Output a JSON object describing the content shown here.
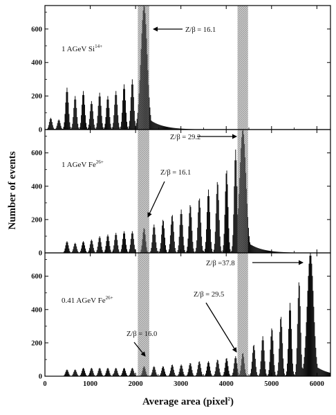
{
  "chart_data": {
    "type": "bar",
    "xlabel": "Average area (pixel",
    "xlabel_sup": "2",
    "xlabel_close": ")",
    "ylabel": "Number of events",
    "xlim": [
      0,
      6300
    ],
    "ylim": [
      0,
      740
    ],
    "xticks": [
      "0",
      "1000",
      "2000",
      "3000",
      "4000",
      "5000",
      "6000"
    ],
    "xtick_values": [
      0,
      1000,
      2000,
      3000,
      4000,
      5000,
      6000
    ],
    "yticks": [
      "0",
      "200",
      "400",
      "600"
    ],
    "ytick_values": [
      0,
      200,
      400,
      600
    ],
    "bands": [
      {
        "x0": 2050,
        "x1": 2300
      },
      {
        "x0": 4250,
        "x1": 4480
      }
    ],
    "panels": [
      {
        "label": "1 AGeV Si",
        "label_sup": "14+",
        "series": {
          "type": "histogram",
          "peak_positions": [
            120,
            300,
            480,
            660,
            840,
            1020,
            1200,
            1380,
            1560,
            1740,
            1920,
            2180
          ],
          "peak_heights": [
            70,
            60,
            250,
            200,
            230,
            170,
            220,
            200,
            230,
            270,
            300,
            740
          ]
        },
        "annotations": [
          {
            "text": "Z/β = 16.1",
            "x": 2180,
            "y": 600
          }
        ]
      },
      {
        "label": "1 AGeV Fe",
        "label_sup": "26+",
        "series": {
          "type": "histogram",
          "peak_positions": [
            480,
            660,
            840,
            1020,
            1200,
            1380,
            1560,
            1740,
            1920,
            2180,
            2400,
            2600,
            2800,
            3000,
            3200,
            3400,
            3600,
            3800,
            4000,
            4200,
            4360
          ],
          "peak_heights": [
            70,
            60,
            70,
            80,
            100,
            110,
            120,
            130,
            130,
            150,
            170,
            200,
            230,
            260,
            290,
            330,
            380,
            430,
            500,
            620,
            740
          ]
        },
        "annotations": [
          {
            "text": "Z/β = 29.2",
            "x": 4360,
            "y": 690
          },
          {
            "text": "Z/β = 16.1",
            "x": 2180,
            "y": 180
          }
        ]
      },
      {
        "label": "0.41 AGeV  Fe",
        "label_sup": "26+",
        "series": {
          "type": "histogram",
          "peak_positions": [
            480,
            660,
            840,
            1020,
            1200,
            1380,
            1560,
            1740,
            1920,
            2180,
            2400,
            2600,
            2800,
            3000,
            3200,
            3400,
            3600,
            3800,
            4000,
            4200,
            4360,
            4600,
            4800,
            5000,
            5200,
            5400,
            5600,
            5850
          ],
          "peak_heights": [
            40,
            40,
            50,
            50,
            50,
            50,
            50,
            50,
            50,
            60,
            60,
            60,
            70,
            70,
            80,
            90,
            90,
            100,
            110,
            120,
            140,
            190,
            240,
            290,
            360,
            440,
            570,
            740
          ]
        },
        "annotations": [
          {
            "text": "Z/β =37.8",
            "x": 5850,
            "y": 690
          },
          {
            "text": "Z/β = 29.5",
            "x": 4360,
            "y": 130
          },
          {
            "text": "Z/β = 16.0",
            "x": 2180,
            "y": 60
          }
        ]
      }
    ]
  }
}
